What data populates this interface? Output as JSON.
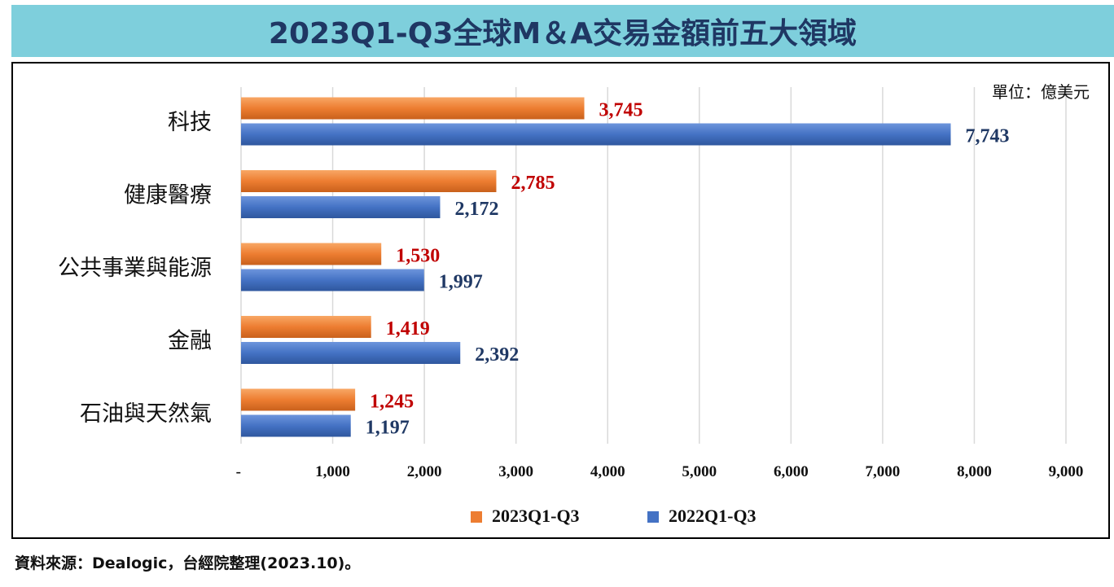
{
  "title": "2023Q1-Q3全球M＆A交易金額前五大領域",
  "source": "資料來源：Dealogic，台經院整理(2023.10)。",
  "chart_data": {
    "type": "bar",
    "orientation": "horizontal",
    "unit": "單位：億美元",
    "categories": [
      "科技",
      "健康醫療",
      "公共事業與能源",
      "金融",
      "石油與天然氣"
    ],
    "series": [
      {
        "name": "2023Q1-Q3",
        "color": "#ed7d31",
        "values": [
          3745,
          2785,
          1530,
          1419,
          1245
        ],
        "labels": [
          "3,745",
          "2,785",
          "1,530",
          "1,419",
          "1,245"
        ]
      },
      {
        "name": "2022Q1-Q3",
        "color": "#4472c4",
        "values": [
          7743,
          2172,
          1997,
          2392,
          1197
        ],
        "labels": [
          "7,743",
          "2,172",
          "1,997",
          "2,392",
          "1,197"
        ]
      }
    ],
    "xlim": [
      0,
      9000
    ],
    "ticks": [
      0,
      1000,
      2000,
      3000,
      4000,
      5000,
      6000,
      7000,
      8000,
      9000
    ],
    "tick_labels": [
      "-",
      "1,000",
      "2,000",
      "3,000",
      "4,000",
      "5,000",
      "6,000",
      "7,000",
      "8,000",
      "9,000"
    ],
    "grid": true,
    "legend_position": "bottom"
  }
}
